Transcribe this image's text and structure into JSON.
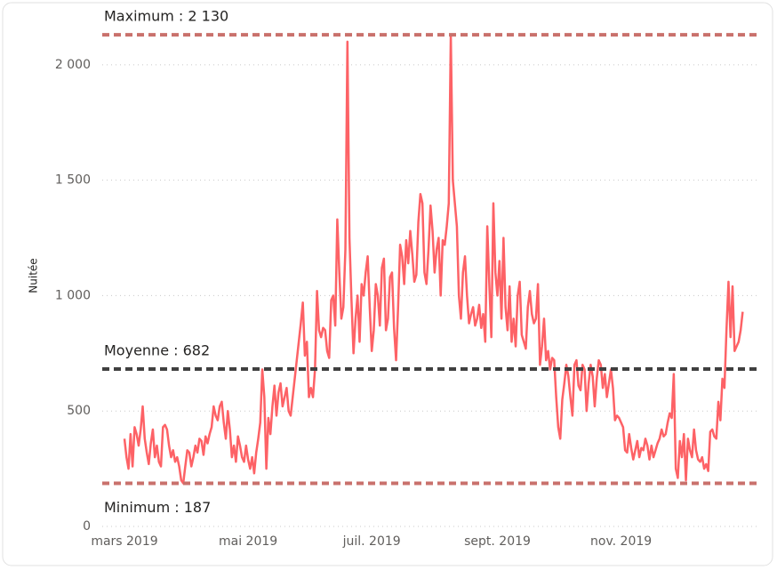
{
  "chart_data": {
    "type": "line",
    "y_label": "Nuitée",
    "categories": [
      "mars 2019",
      null,
      null,
      null,
      null,
      null,
      null,
      null,
      null,
      null,
      null,
      null,
      null,
      null,
      null,
      null,
      null,
      null,
      null,
      null,
      null,
      null,
      null,
      null,
      null,
      null,
      null,
      null,
      null,
      null,
      null,
      null,
      null,
      null,
      null,
      null,
      null,
      null,
      null,
      null,
      null,
      null,
      null,
      null,
      null,
      null,
      null,
      null,
      null,
      null,
      null,
      null,
      null,
      null,
      null,
      null,
      null,
      null,
      null,
      null,
      null,
      "mai 2019",
      null,
      null,
      null,
      null,
      null,
      null,
      null,
      null,
      null,
      null,
      null,
      null,
      null,
      null,
      null,
      null,
      null,
      null,
      null,
      null,
      null,
      null,
      null,
      null,
      null,
      null,
      null,
      null,
      null,
      null,
      null,
      null,
      null,
      null,
      null,
      null,
      null,
      null,
      null,
      null,
      null,
      null,
      null,
      null,
      null,
      null,
      null,
      null,
      null,
      null,
      null,
      null,
      null,
      null,
      null,
      null,
      null,
      null,
      null,
      null,
      "juil. 2019",
      null,
      null,
      null,
      null,
      null,
      null,
      null,
      null,
      null,
      null,
      null,
      null,
      null,
      null,
      null,
      null,
      null,
      null,
      null,
      null,
      null,
      null,
      null,
      null,
      null,
      null,
      null,
      null,
      null,
      null,
      null,
      null,
      null,
      null,
      null,
      null,
      null,
      null,
      null,
      null,
      null,
      null,
      null,
      null,
      null,
      null,
      null,
      null,
      null,
      null,
      null,
      null,
      null,
      null,
      null,
      null,
      null,
      null,
      null,
      null,
      null,
      "sept. 2019",
      null,
      null,
      null,
      null,
      null,
      null,
      null,
      null,
      null,
      null,
      null,
      null,
      null,
      null,
      null,
      null,
      null,
      null,
      null,
      null,
      null,
      null,
      null,
      null,
      null,
      null,
      null,
      null,
      null,
      null,
      null,
      null,
      null,
      null,
      null,
      null,
      null,
      null,
      null,
      null,
      null,
      null,
      null,
      null,
      null,
      null,
      null,
      null,
      null,
      null,
      null,
      null,
      null,
      null,
      null,
      null,
      null,
      null,
      null,
      null,
      "nov. 2019",
      null,
      null,
      null,
      null,
      null,
      null,
      null,
      null,
      null,
      null,
      null,
      null,
      null,
      null,
      null,
      null,
      null,
      null,
      null,
      null,
      null,
      null,
      null,
      null,
      null,
      null,
      null,
      null,
      null,
      null,
      null,
      null,
      null,
      null,
      null,
      null,
      null,
      null,
      null,
      null,
      null,
      null,
      null,
      null,
      null,
      null,
      null,
      null,
      null,
      null,
      null,
      null,
      null,
      null,
      null,
      null,
      null,
      null,
      null,
      null
    ],
    "values": [
      380,
      300,
      250,
      400,
      260,
      430,
      400,
      350,
      420,
      520,
      380,
      320,
      270,
      360,
      420,
      300,
      350,
      280,
      260,
      430,
      440,
      420,
      350,
      300,
      330,
      280,
      300,
      260,
      200,
      187,
      260,
      330,
      320,
      260,
      300,
      350,
      320,
      380,
      370,
      310,
      390,
      360,
      400,
      430,
      520,
      480,
      460,
      520,
      540,
      450,
      380,
      500,
      420,
      300,
      350,
      280,
      390,
      350,
      300,
      280,
      350,
      290,
      250,
      300,
      230,
      320,
      380,
      450,
      680,
      560,
      250,
      470,
      400,
      520,
      610,
      480,
      580,
      620,
      520,
      560,
      600,
      500,
      480,
      560,
      640,
      720,
      800,
      880,
      970,
      740,
      800,
      560,
      600,
      560,
      680,
      1020,
      850,
      820,
      860,
      850,
      760,
      730,
      980,
      1000,
      870,
      1330,
      1100,
      900,
      950,
      1200,
      2100,
      1250,
      980,
      750,
      900,
      1000,
      800,
      1050,
      1000,
      1100,
      1170,
      950,
      760,
      850,
      1050,
      1000,
      870,
      1120,
      1160,
      850,
      900,
      1080,
      1100,
      860,
      720,
      950,
      1220,
      1170,
      1050,
      1240,
      1140,
      1280,
      1180,
      1060,
      1090,
      1320,
      1440,
      1400,
      1100,
      1050,
      1200,
      1390,
      1280,
      1100,
      1200,
      1250,
      1000,
      1240,
      1220,
      1300,
      1400,
      2130,
      1500,
      1400,
      1300,
      1000,
      900,
      1100,
      1170,
      1000,
      880,
      920,
      950,
      870,
      900,
      960,
      860,
      920,
      800,
      1300,
      1050,
      820,
      1400,
      1100,
      1000,
      1150,
      900,
      1250,
      950,
      850,
      1040,
      800,
      900,
      780,
      1000,
      1060,
      830,
      800,
      770,
      950,
      1020,
      920,
      880,
      900,
      1050,
      700,
      780,
      900,
      720,
      760,
      680,
      730,
      720,
      560,
      430,
      380,
      550,
      620,
      700,
      650,
      560,
      480,
      700,
      720,
      610,
      590,
      700,
      680,
      500,
      620,
      700,
      650,
      520,
      640,
      720,
      700,
      600,
      660,
      560,
      620,
      680,
      600,
      460,
      480,
      470,
      450,
      430,
      330,
      320,
      400,
      340,
      290,
      330,
      370,
      300,
      340,
      330,
      380,
      350,
      290,
      350,
      300,
      330,
      360,
      380,
      420,
      390,
      400,
      450,
      490,
      470,
      660,
      250,
      210,
      370,
      300,
      400,
      200,
      380,
      330,
      300,
      420,
      330,
      290,
      280,
      300,
      250,
      270,
      240,
      410,
      420,
      390,
      380,
      540,
      460,
      640,
      600,
      850,
      1060,
      820,
      1040,
      760,
      780,
      800,
      850,
      930
    ],
    "color": "#fd6266",
    "ylim": [
      0,
      2165
    ],
    "yticks": [
      0,
      500,
      {
        "value": 1000,
        "label": "1 000"
      },
      {
        "value": 1500,
        "label": "1 500"
      },
      {
        "value": 2000,
        "label": "2 000"
      }
    ],
    "grid": true,
    "reference_lines": [
      {
        "value": 2130,
        "label": "Maximum : 2 130",
        "color": "#c9716c"
      },
      {
        "value": 682,
        "label": "Moyenne : 682",
        "color": "#404040"
      },
      {
        "value": 187,
        "label": "Minimum : 187",
        "color": "#c9716c"
      }
    ]
  }
}
